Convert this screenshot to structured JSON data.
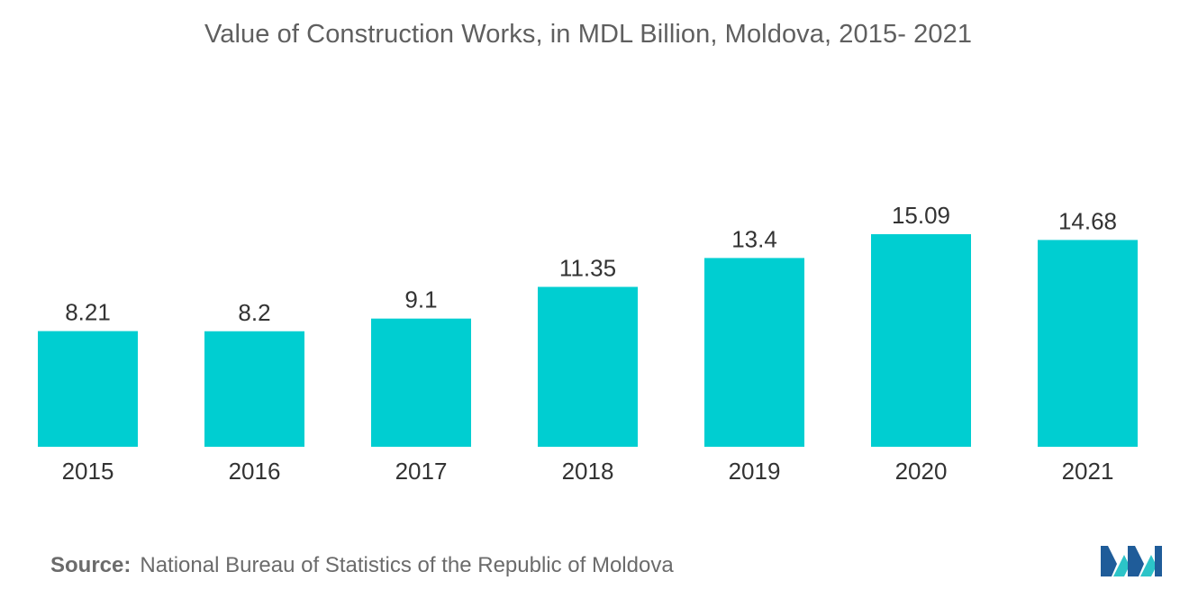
{
  "title": "Value of Construction Works, in MDL Billion, Moldova, 2015- 2021",
  "source": {
    "label": "Source:",
    "text": "National Bureau of Statistics of the Republic of Moldova"
  },
  "logo": {
    "icon": "mordor-intelligence-logo-icon"
  },
  "colors": {
    "bar": "#00CED1",
    "logo_dark": "#1F5C99",
    "logo_light": "#2CC4C8"
  },
  "chart_data": {
    "type": "bar",
    "title": "Value of Construction Works, in MDL Billion, Moldova, 2015- 2021",
    "categories": [
      "2015",
      "2016",
      "2017",
      "2018",
      "2019",
      "2020",
      "2021"
    ],
    "values": [
      8.21,
      8.2,
      9.1,
      11.35,
      13.4,
      15.09,
      14.68
    ],
    "value_labels": [
      "8.21",
      "8.2",
      "9.1",
      "11.35",
      "13.4",
      "15.09",
      "14.68"
    ],
    "xlabel": "",
    "ylabel": "",
    "ylim": [
      0,
      15.09
    ],
    "grid": false,
    "legend": "none",
    "data_labels": true
  }
}
